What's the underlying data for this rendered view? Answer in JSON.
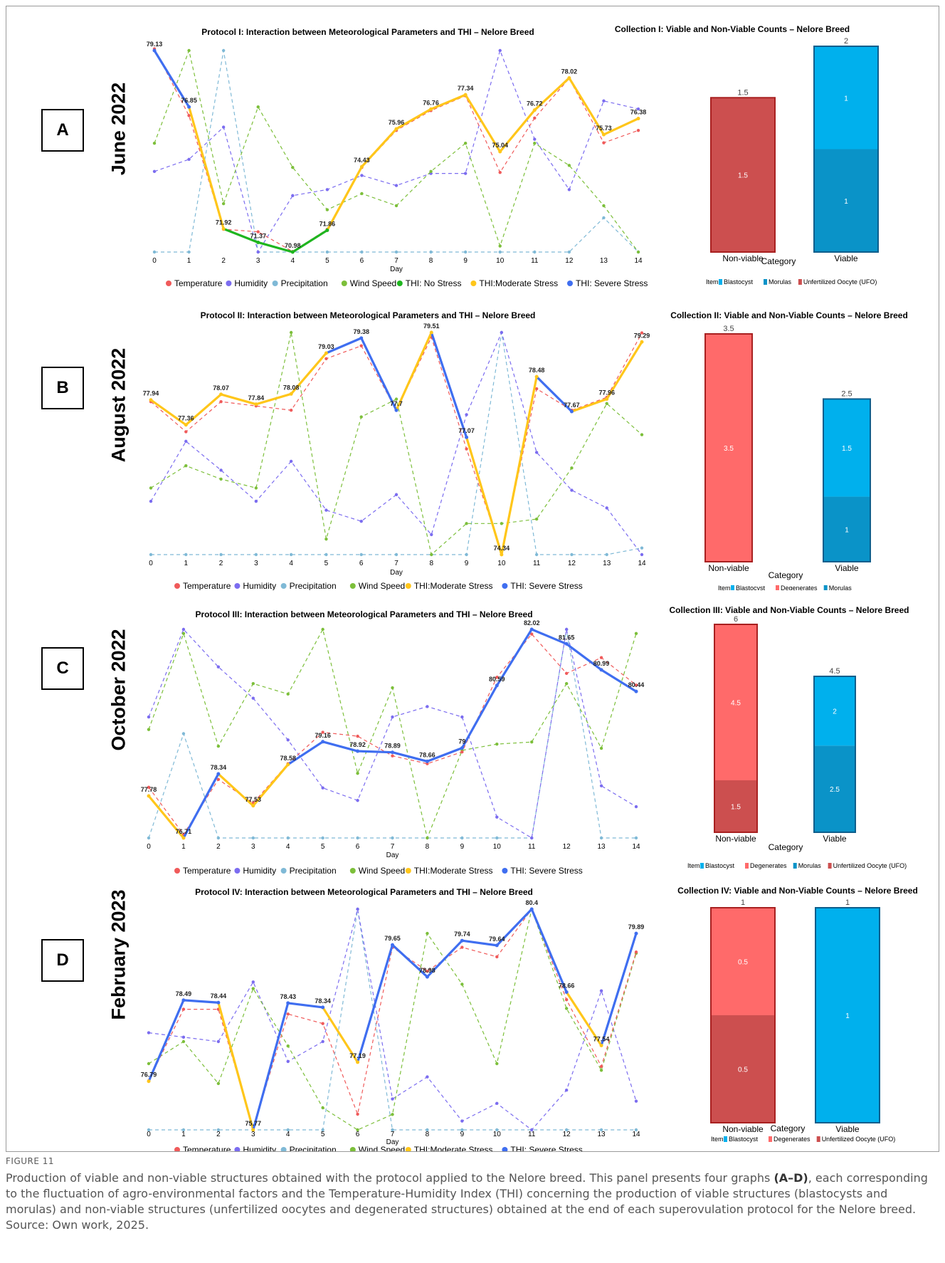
{
  "figure": {
    "label": "FIGURE 11",
    "caption_parts": [
      "Production of viable and non-viable structures obtained with the protocol applied to the Nelore breed. This panel presents four graphs ",
      "(A–D)",
      ", each corresponding to the fluctuation of agro-environmental factors and the Temperature-Humidity Index (THI) concerning the production of viable structures (blastocysts and morulas) and non-viable structures (unfertilized oocytes and degenerated structures) obtained at the end of each superovulation protocol for the Nelore breed. Source: Own work, 2025."
    ]
  },
  "colors": {
    "temperature": "#f05a5a",
    "humidity": "#7b6cf0",
    "precipitation": "#7fb9d6",
    "wind": "#7cbf3a",
    "thi_no": "#1fb51f",
    "thi_moderate": "#ffc61a",
    "thi_severe": "#3f6ef0",
    "blastocyst": "#00b0ed",
    "morulas": "#0a93c8",
    "degenerates": "#ff6a6a",
    "ufo": "#cc4f4f",
    "bar_border_red": "#a82020",
    "bar_border_blue": "#0d5e8c"
  },
  "chart_data": [
    {
      "type": "line",
      "panel_letter": "A",
      "month_label": "June 2022",
      "title": "Protocol I: Interaction between Meteorological Parameters and THI – Nelore Breed",
      "xlabel": "Day",
      "x": [
        0,
        1,
        2,
        3,
        4,
        5,
        6,
        7,
        8,
        9,
        10,
        11,
        12,
        13,
        14
      ],
      "thi": [
        79.13,
        76.85,
        71.92,
        71.37,
        70.98,
        71.86,
        74.43,
        75.96,
        76.76,
        77.34,
        75.04,
        76.72,
        78.02,
        75.73,
        76.38
      ],
      "thi_labels": [
        "79.13",
        "76.85",
        "71.92",
        "71.37",
        "70.98",
        "71.86",
        "74.43",
        "75.96",
        "76.76",
        "77.34",
        "75.04",
        "76.72",
        "78.02",
        "75.73",
        "76.38"
      ],
      "thi_class": [
        "s",
        "s",
        "m",
        "n",
        "n",
        "n",
        "m",
        "m",
        "m",
        "m",
        "m",
        "m",
        "m",
        "m",
        "m"
      ],
      "thi_ylim": [
        70.98,
        79.13
      ],
      "meteo": {
        "temperature": [
          79.2,
          76.5,
          71.9,
          71.8,
          71.0,
          71.9,
          74.4,
          75.9,
          76.7,
          77.3,
          74.2,
          76.4,
          78.0,
          75.4,
          75.9
        ],
        "humidity": [
          0.4,
          0.46,
          0.62,
          0.0,
          0.28,
          0.31,
          0.38,
          0.33,
          0.39,
          0.39,
          1.0,
          0.56,
          0.31,
          0.75,
          0.71
        ],
        "precipitation": [
          0.0,
          0.0,
          1.0,
          0.0,
          0.0,
          0.0,
          0.0,
          0.0,
          0.0,
          0.0,
          0.0,
          0.0,
          0.0,
          0.17,
          0.0
        ],
        "wind": [
          0.54,
          1.0,
          0.24,
          0.72,
          0.42,
          0.21,
          0.29,
          0.23,
          0.4,
          0.54,
          0.03,
          0.54,
          0.43,
          0.23,
          0.0
        ]
      },
      "legend": [
        {
          "label": "Temperature",
          "color_key": "temperature"
        },
        {
          "label": "Humidity",
          "color_key": "humidity"
        },
        {
          "label": "Precipitation",
          "color_key": "precipitation"
        },
        {
          "label": "Wind Speed",
          "color_key": "wind"
        },
        {
          "label": "THI: No Stress",
          "color_key": "thi_no"
        },
        {
          "label": "THI:Moderate Stress",
          "color_key": "thi_moderate"
        },
        {
          "label": "THI: Severe Stress",
          "color_key": "thi_severe"
        }
      ],
      "bars": {
        "title": "Collection I: Viable and Non-Viable Counts – Nelore Breed",
        "xlabel": "Category",
        "ymax": 2,
        "legend_title": "Item",
        "legend": [
          {
            "label": "Blastocyst",
            "color_key": "blastocyst"
          },
          {
            "label": "Morulas",
            "color_key": "morulas"
          },
          {
            "label": "Unfertilized Oocyte (UFO)",
            "color_key": "ufo"
          }
        ],
        "categories": [
          {
            "name": "Non-viable",
            "total": 1.5,
            "total_label": "1.5",
            "border_key": "bar_border_red",
            "segments": [
              {
                "item": "Unfertilized Oocyte (UFO)",
                "value": 1.5,
                "label": "1.5",
                "color_key": "ufo"
              }
            ]
          },
          {
            "name": "Viable",
            "total": 2,
            "total_label": "2",
            "border_key": "bar_border_blue",
            "segments": [
              {
                "item": "Morulas",
                "value": 1,
                "label": "1",
                "color_key": "morulas"
              },
              {
                "item": "Blastocyst",
                "value": 1,
                "label": "1",
                "color_key": "blastocyst"
              }
            ]
          }
        ]
      }
    },
    {
      "type": "line",
      "panel_letter": "B",
      "month_label": "August 2022",
      "title": "Protocol II: Interaction between Meteorological Parameters and THI – Nelore Breed",
      "xlabel": "Day",
      "x": [
        0,
        1,
        2,
        3,
        4,
        5,
        6,
        7,
        8,
        9,
        10,
        11,
        12,
        13,
        14
      ],
      "thi": [
        77.94,
        77.36,
        78.07,
        77.84,
        78.08,
        79.03,
        79.38,
        77.7,
        79.51,
        77.07,
        74.34,
        78.48,
        77.67,
        77.96,
        79.29
      ],
      "thi_labels": [
        "77.94",
        "77.36",
        "78.07",
        "77.84",
        "78.08",
        "79.03",
        "79.38",
        "77.7",
        "79.51",
        "77.07",
        "74.34",
        "78.48",
        "77.67",
        "77.96",
        "79.29"
      ],
      "thi_class": [
        "m",
        "m",
        "m",
        "m",
        "m",
        "m",
        "s",
        "s",
        "m",
        "s",
        "m",
        "m",
        "s",
        "m",
        "m"
      ],
      "thi_ylim": [
        74.34,
        79.51
      ],
      "meteo": {
        "temperature": [
          77.9,
          77.2,
          77.9,
          77.8,
          77.7,
          78.9,
          79.2,
          77.7,
          79.4,
          76.8,
          74.4,
          78.2,
          77.7,
          78.0,
          79.5
        ],
        "humidity": [
          0.24,
          0.51,
          0.38,
          0.24,
          0.42,
          0.2,
          0.15,
          0.27,
          0.09,
          0.63,
          1.0,
          0.46,
          0.29,
          0.21,
          0.0
        ],
        "precipitation": [
          0.0,
          0.0,
          0.0,
          0.0,
          0.0,
          0.0,
          0.0,
          0.0,
          0.0,
          0.0,
          1.0,
          0.0,
          0.0,
          0.0,
          0.03
        ],
        "wind": [
          0.3,
          0.4,
          0.34,
          0.3,
          1.0,
          0.07,
          0.62,
          0.7,
          0.0,
          0.14,
          0.14,
          0.16,
          0.39,
          0.68,
          0.54
        ]
      },
      "legend": [
        {
          "label": "Temperature",
          "color_key": "temperature"
        },
        {
          "label": "Humidity",
          "color_key": "humidity"
        },
        {
          "label": "Precipitation",
          "color_key": "precipitation"
        },
        {
          "label": "Wind Speed",
          "color_key": "wind"
        },
        {
          "label": "THI:Moderate Stress",
          "color_key": "thi_moderate"
        },
        {
          "label": "THI: Severe Stress",
          "color_key": "thi_severe"
        }
      ],
      "bars": {
        "title": "Collection II: Viable and Non-Viable Counts – Nelore Breed",
        "xlabel": "Category",
        "ymax": 3.5,
        "legend_title": "Item",
        "legend": [
          {
            "label": "Blastocyst",
            "color_key": "blastocyst"
          },
          {
            "label": "Degenerates",
            "color_key": "degenerates"
          },
          {
            "label": "Morulas",
            "color_key": "morulas"
          }
        ],
        "categories": [
          {
            "name": "Non-viable",
            "total": 3.5,
            "total_label": "3.5",
            "border_key": "bar_border_red",
            "segments": [
              {
                "item": "Degenerates",
                "value": 3.5,
                "label": "3.5",
                "color_key": "degenerates"
              }
            ]
          },
          {
            "name": "Viable",
            "total": 2.5,
            "total_label": "2.5",
            "border_key": "bar_border_blue",
            "segments": [
              {
                "item": "Morulas",
                "value": 1,
                "label": "1",
                "color_key": "morulas"
              },
              {
                "item": "Blastocyst",
                "value": 1.5,
                "label": "1.5",
                "color_key": "blastocyst"
              }
            ]
          }
        ]
      }
    },
    {
      "type": "line",
      "panel_letter": "C",
      "month_label": "October 2022",
      "title": "Protocol III: Interaction between Meteorological Parameters and THI – Nelore Breed",
      "xlabel": "Day",
      "x": [
        0,
        1,
        2,
        3,
        4,
        5,
        6,
        7,
        8,
        9,
        10,
        11,
        12,
        13,
        14
      ],
      "thi": [
        77.78,
        76.71,
        78.34,
        77.53,
        78.58,
        79.16,
        78.92,
        78.89,
        78.66,
        79.0,
        80.59,
        82.02,
        81.65,
        80.99,
        80.44
      ],
      "thi_labels": [
        "77.78",
        "76.71",
        "78.34",
        "77.53",
        "78.58",
        "79.16",
        "78.92",
        "78.89",
        "78.66",
        "79",
        "80.59",
        "82.02",
        "81.65",
        "80.99",
        "80.44"
      ],
      "thi_class": [
        "m",
        "m",
        "s",
        "m",
        "m",
        "s",
        "s",
        "s",
        "s",
        "s",
        "s",
        "s",
        "s",
        "s",
        "s"
      ],
      "thi_ylim": [
        76.71,
        82.02
      ],
      "meteo": {
        "temperature": [
          78.0,
          76.8,
          78.2,
          77.6,
          78.6,
          79.4,
          79.3,
          78.8,
          78.6,
          78.9,
          80.8,
          81.9,
          80.9,
          81.3,
          80.6
        ],
        "humidity": [
          0.58,
          1.0,
          0.82,
          0.67,
          0.47,
          0.24,
          0.18,
          0.58,
          0.63,
          0.58,
          0.1,
          0.0,
          1.0,
          0.25,
          0.15
        ],
        "precipitation": [
          0.0,
          0.5,
          0.0,
          0.0,
          0.0,
          0.0,
          0.0,
          0.0,
          0.0,
          0.0,
          0.0,
          0.0,
          1.0,
          0.0,
          0.0
        ],
        "wind": [
          0.52,
          0.98,
          0.44,
          0.74,
          0.69,
          1.0,
          0.31,
          0.72,
          0.0,
          0.42,
          0.45,
          0.46,
          0.74,
          0.43,
          0.98
        ]
      },
      "legend": [
        {
          "label": "Temperature",
          "color_key": "temperature"
        },
        {
          "label": "Humidity",
          "color_key": "humidity"
        },
        {
          "label": "Precipitation",
          "color_key": "precipitation"
        },
        {
          "label": "Wind Speed",
          "color_key": "wind"
        },
        {
          "label": "THI:Moderate Stress",
          "color_key": "thi_moderate"
        },
        {
          "label": "THI: Severe Stress",
          "color_key": "thi_severe"
        }
      ],
      "bars": {
        "title": "Collection III: Viable and Non-Viable Counts – Nelore Breed",
        "xlabel": "Category",
        "ymax": 6,
        "legend_title": "Item",
        "legend": [
          {
            "label": "Blastocyst",
            "color_key": "blastocyst"
          },
          {
            "label": "Degenerates",
            "color_key": "degenerates"
          },
          {
            "label": "Morulas",
            "color_key": "morulas"
          },
          {
            "label": "Unfertilized Oocyte (UFO)",
            "color_key": "ufo"
          }
        ],
        "categories": [
          {
            "name": "Non-viable",
            "total": 6,
            "total_label": "6",
            "border_key": "bar_border_red",
            "segments": [
              {
                "item": "Unfertilized Oocyte (UFO)",
                "value": 1.5,
                "label": "1.5",
                "color_key": "ufo"
              },
              {
                "item": "Degenerates",
                "value": 4.5,
                "label": "4.5",
                "color_key": "degenerates"
              }
            ]
          },
          {
            "name": "Viable",
            "total": 4.5,
            "total_label": "4.5",
            "border_key": "bar_border_blue",
            "segments": [
              {
                "item": "Morulas",
                "value": 2.5,
                "label": "2.5",
                "color_key": "morulas"
              },
              {
                "item": "Blastocyst",
                "value": 2,
                "label": "2",
                "color_key": "blastocyst"
              }
            ]
          }
        ]
      }
    },
    {
      "type": "line",
      "panel_letter": "D",
      "month_label": "February 2023",
      "title": "Protocol IV: Interaction between Meteorological Parameters and THI – Nelore Breed",
      "xlabel": "Day",
      "x": [
        0,
        1,
        2,
        3,
        4,
        5,
        6,
        7,
        8,
        9,
        10,
        11,
        12,
        13,
        14
      ],
      "thi": [
        76.79,
        78.49,
        78.44,
        75.77,
        78.43,
        78.34,
        77.19,
        79.65,
        78.98,
        79.74,
        79.64,
        80.4,
        78.66,
        77.54,
        79.89
      ],
      "thi_labels": [
        "76.79",
        "78.49",
        "78.44",
        "75.77",
        "78.43",
        "78.34",
        "77.19",
        "79.65",
        "78.98",
        "79.74",
        "79.64",
        "80.4",
        "78.66",
        "77.54",
        "79.89"
      ],
      "thi_class": [
        "m",
        "s",
        "s",
        "m",
        "s",
        "s",
        "m",
        "s",
        "s",
        "s",
        "s",
        "s",
        "s",
        "m",
        "s"
      ],
      "thi_ylim": [
        75.77,
        80.4
      ],
      "meteo": {
        "temperature": [
          76.8,
          78.3,
          78.3,
          75.8,
          78.2,
          78.0,
          76.1,
          79.6,
          79.1,
          79.6,
          79.4,
          80.4,
          78.5,
          77.1,
          79.5
        ],
        "humidity": [
          0.44,
          0.42,
          0.4,
          0.67,
          0.31,
          0.4,
          1.0,
          0.14,
          0.24,
          0.04,
          0.12,
          0.0,
          0.18,
          0.63,
          0.13
        ],
        "precipitation": [
          0.0,
          0.0,
          0.0,
          0.0,
          0.0,
          0.0,
          1.0,
          0.0,
          0.0,
          0.0,
          0.0,
          0.0,
          0.0,
          0.0,
          0.0
        ],
        "wind": [
          0.3,
          0.4,
          0.21,
          0.64,
          0.38,
          0.1,
          0.0,
          0.07,
          0.89,
          0.66,
          0.3,
          1.0,
          0.55,
          0.27,
          0.8
        ]
      },
      "legend": [
        {
          "label": "Temperature",
          "color_key": "temperature"
        },
        {
          "label": "Humidity",
          "color_key": "humidity"
        },
        {
          "label": "Precipitation",
          "color_key": "precipitation"
        },
        {
          "label": "Wind Speed",
          "color_key": "wind"
        },
        {
          "label": "THI:Moderate Stress",
          "color_key": "thi_moderate"
        },
        {
          "label": "THI: Severe Stress",
          "color_key": "thi_severe"
        }
      ],
      "bars": {
        "title": "Collection IV: Viable and Non-Viable Counts – Nelore Breed",
        "xlabel": "Category",
        "ymax": 1,
        "legend_title": "Item",
        "legend": [
          {
            "label": "Blastocyst",
            "color_key": "blastocyst"
          },
          {
            "label": "Degenerates",
            "color_key": "degenerates"
          },
          {
            "label": "Unfertilized Oocyte (UFO)",
            "color_key": "ufo"
          }
        ],
        "categories": [
          {
            "name": "Non-viable",
            "total": 1,
            "total_label": "1",
            "border_key": "bar_border_red",
            "segments": [
              {
                "item": "Unfertilized Oocyte (UFO)",
                "value": 0.5,
                "label": "0.5",
                "color_key": "ufo"
              },
              {
                "item": "Degenerates",
                "value": 0.5,
                "label": "0.5",
                "color_key": "degenerates"
              }
            ]
          },
          {
            "name": "Viable",
            "total": 1,
            "total_label": "1",
            "border_key": "bar_border_blue",
            "segments": [
              {
                "item": "Blastocyst",
                "value": 1,
                "label": "1",
                "color_key": "blastocyst"
              }
            ]
          }
        ]
      }
    }
  ]
}
